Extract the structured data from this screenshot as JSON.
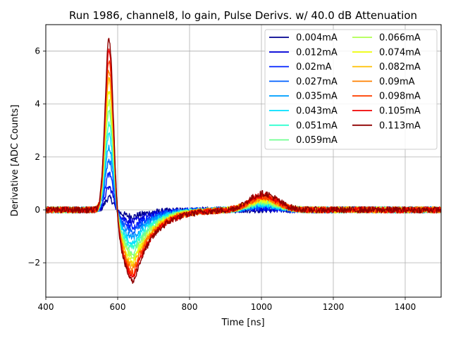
{
  "chart_data": {
    "type": "line",
    "title": "Run 1986, channel8, lo gain, Pulse Derivs. w/ 40.0 dB Attenuation",
    "xlabel": "Time [ns]",
    "ylabel": "Derivative [ADC Counts]",
    "xlim": [
      400,
      1500
    ],
    "ylim": [
      -3.3,
      7.0
    ],
    "xticks": [
      400,
      600,
      800,
      1000,
      1200,
      1400
    ],
    "yticks": [
      -2,
      0,
      2,
      4,
      6
    ],
    "ytick_labels": [
      "−2",
      "0",
      "2",
      "4",
      "6"
    ],
    "grid": true,
    "legend_position": "top-right",
    "legend_columns": 2,
    "pulse_model": {
      "baseline": 0,
      "peak_time": 576,
      "undershoot_time": 645,
      "bump_time": 1005,
      "noise_amplitude": 0.12
    },
    "series": [
      {
        "name": "0.004mA",
        "color": "#00008f",
        "peak": 0.45,
        "undershoot": -0.25,
        "bump": 0.0
      },
      {
        "name": "0.012mA",
        "color": "#0000d8",
        "peak": 0.85,
        "undershoot": -0.45,
        "bump": 0.05
      },
      {
        "name": "0.02mA",
        "color": "#0020ff",
        "peak": 1.35,
        "undershoot": -0.65,
        "bump": 0.1
      },
      {
        "name": "0.027mA",
        "color": "#0060ff",
        "peak": 1.85,
        "undershoot": -0.85,
        "bump": 0.14
      },
      {
        "name": "0.035mA",
        "color": "#00a0ff",
        "peak": 2.35,
        "undershoot": -1.05,
        "bump": 0.18
      },
      {
        "name": "0.043mA",
        "color": "#00e0ff",
        "peak": 2.85,
        "undershoot": -1.25,
        "bump": 0.22
      },
      {
        "name": "0.051mA",
        "color": "#30ffd0",
        "peak": 3.3,
        "undershoot": -1.45,
        "bump": 0.26
      },
      {
        "name": "0.059mA",
        "color": "#70ff90",
        "peak": 3.7,
        "undershoot": -1.62,
        "bump": 0.3
      },
      {
        "name": "0.066mA",
        "color": "#b0ff50",
        "peak": 4.1,
        "undershoot": -1.8,
        "bump": 0.34
      },
      {
        "name": "0.074mA",
        "color": "#f0ff10",
        "peak": 4.5,
        "undershoot": -1.95,
        "bump": 0.38
      },
      {
        "name": "0.082mA",
        "color": "#ffc000",
        "peak": 4.9,
        "undershoot": -2.1,
        "bump": 0.42
      },
      {
        "name": "0.09mA",
        "color": "#ff8000",
        "peak": 5.3,
        "undershoot": -2.25,
        "bump": 0.46
      },
      {
        "name": "0.098mA",
        "color": "#ff4000",
        "peak": 5.65,
        "undershoot": -2.4,
        "bump": 0.5
      },
      {
        "name": "0.105mA",
        "color": "#f00000",
        "peak": 6.0,
        "undershoot": -2.55,
        "bump": 0.55
      },
      {
        "name": "0.113mA",
        "color": "#8f0000",
        "peak": 6.45,
        "undershoot": -2.7,
        "bump": 0.62
      }
    ]
  }
}
